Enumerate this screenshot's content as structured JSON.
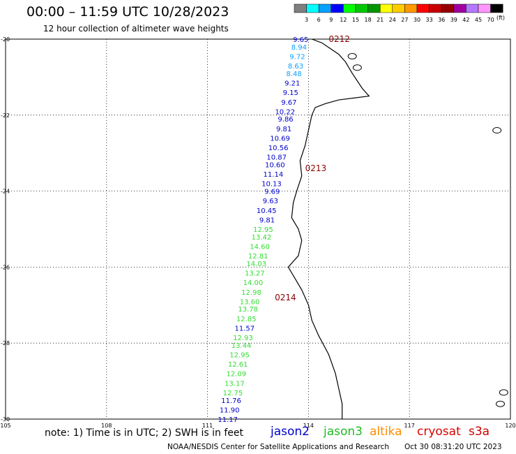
{
  "header": {
    "title": "00:00 – 11:59 UTC 10/28/2023",
    "subtitle": "12 hour collection of altimeter wave heights"
  },
  "color_scale": {
    "unit": "(ft)",
    "labels": [
      "3",
      "6",
      "9",
      "12",
      "15",
      "18",
      "21",
      "24",
      "27",
      "30",
      "33",
      "36",
      "39",
      "42",
      "45",
      "70"
    ],
    "colors": [
      "#7f7f7f",
      "#00ffff",
      "#0aa0ff",
      "#0000ff",
      "#00ff00",
      "#00c800",
      "#009600",
      "#ffff00",
      "#ffcc00",
      "#ff9900",
      "#ff0000",
      "#c80000",
      "#960000",
      "#a000a0",
      "#b478ff",
      "#ff96ff",
      "#000000"
    ]
  },
  "chart_data": {
    "type": "scatter",
    "title": "12 hour collection of altimeter wave heights",
    "xlim": [
      105,
      120
    ],
    "ylim": [
      -30,
      -20
    ],
    "x_ticks": [
      105,
      108,
      111,
      114,
      117,
      120
    ],
    "y_ticks": [
      -20,
      -22,
      -24,
      -26,
      -28,
      -30
    ],
    "x_tick_labels": [
      "105",
      "108",
      "111",
      "114",
      "117",
      "120"
    ],
    "y_tick_labels": [
      "-20",
      "-22",
      "-24",
      "-26",
      "-28",
      "-30"
    ],
    "grid": true,
    "coastline_color": "#000000",
    "pass_labels": [
      {
        "text": "0212",
        "lon": 114.6,
        "lat": -20.0
      },
      {
        "text": "0213",
        "lon": 113.9,
        "lat": -23.4
      },
      {
        "text": "0214",
        "lon": 113.0,
        "lat": -26.8
      }
    ],
    "series": [
      {
        "name": "jason2",
        "color": "#0000cc",
        "values": []
      },
      {
        "name": "jason3",
        "color": "#22bb22",
        "values": []
      },
      {
        "name": "altika",
        "color": "#ff8c00",
        "values": []
      },
      {
        "name": "cryosat",
        "color": "#dd0000",
        "values": []
      },
      {
        "name": "s3a",
        "color": "#cc0000",
        "values": []
      }
    ],
    "points": [
      {
        "text": "9.65",
        "lon": 114.0,
        "lat": -20.0,
        "color": "#0000cc"
      },
      {
        "text": "8.94",
        "lon": 113.95,
        "lat": -20.2,
        "color": "#0aa0ff"
      },
      {
        "text": "9.72",
        "lon": 113.9,
        "lat": -20.45,
        "color": "#0aa0ff"
      },
      {
        "text": "8.63",
        "lon": 113.85,
        "lat": -20.7,
        "color": "#0aa0ff"
      },
      {
        "text": "8.48",
        "lon": 113.8,
        "lat": -20.9,
        "color": "#0aa0ff"
      },
      {
        "text": "9.21",
        "lon": 113.75,
        "lat": -21.15,
        "color": "#0000cc"
      },
      {
        "text": "9.15",
        "lon": 113.7,
        "lat": -21.4,
        "color": "#0000cc"
      },
      {
        "text": "9.67",
        "lon": 113.65,
        "lat": -21.65,
        "color": "#0000cc"
      },
      {
        "text": "10.22",
        "lon": 113.6,
        "lat": -21.9,
        "color": "#0000cc"
      },
      {
        "text": "9.86",
        "lon": 113.55,
        "lat": -22.1,
        "color": "#0000cc"
      },
      {
        "text": "9.81",
        "lon": 113.5,
        "lat": -22.35,
        "color": "#0000cc"
      },
      {
        "text": "10.69",
        "lon": 113.45,
        "lat": -22.6,
        "color": "#0000cc"
      },
      {
        "text": "10.56",
        "lon": 113.4,
        "lat": -22.85,
        "color": "#0000cc"
      },
      {
        "text": "10.87",
        "lon": 113.35,
        "lat": -23.1,
        "color": "#0000cc"
      },
      {
        "text": "10.60",
        "lon": 113.3,
        "lat": -23.3,
        "color": "#0000cc"
      },
      {
        "text": "11.14",
        "lon": 113.25,
        "lat": -23.55,
        "color": "#0000cc"
      },
      {
        "text": "10.13",
        "lon": 113.2,
        "lat": -23.8,
        "color": "#0000cc"
      },
      {
        "text": "9.69",
        "lon": 113.15,
        "lat": -24.0,
        "color": "#0000cc"
      },
      {
        "text": "9.63",
        "lon": 113.1,
        "lat": -24.25,
        "color": "#0000cc"
      },
      {
        "text": "10.45",
        "lon": 113.05,
        "lat": -24.5,
        "color": "#0000cc"
      },
      {
        "text": "9.81",
        "lon": 113.0,
        "lat": -24.75,
        "color": "#0000cc"
      },
      {
        "text": "12.95",
        "lon": 112.95,
        "lat": -25.0,
        "color": "#33dd33"
      },
      {
        "text": "13.42",
        "lon": 112.9,
        "lat": -25.2,
        "color": "#33dd33"
      },
      {
        "text": "14.60",
        "lon": 112.85,
        "lat": -25.45,
        "color": "#33dd33"
      },
      {
        "text": "12.81",
        "lon": 112.8,
        "lat": -25.7,
        "color": "#33dd33"
      },
      {
        "text": "14.03",
        "lon": 112.75,
        "lat": -25.9,
        "color": "#33dd33"
      },
      {
        "text": "13.27",
        "lon": 112.7,
        "lat": -26.15,
        "color": "#33dd33"
      },
      {
        "text": "14.00",
        "lon": 112.65,
        "lat": -26.4,
        "color": "#33dd33"
      },
      {
        "text": "12.98",
        "lon": 112.6,
        "lat": -26.65,
        "color": "#33dd33"
      },
      {
        "text": "13.60",
        "lon": 112.55,
        "lat": -26.9,
        "color": "#33dd33"
      },
      {
        "text": "13.78",
        "lon": 112.5,
        "lat": -27.1,
        "color": "#33dd33"
      },
      {
        "text": "12.85",
        "lon": 112.45,
        "lat": -27.35,
        "color": "#33dd33"
      },
      {
        "text": "11.57",
        "lon": 112.4,
        "lat": -27.6,
        "color": "#0000cc"
      },
      {
        "text": "12.93",
        "lon": 112.35,
        "lat": -27.85,
        "color": "#33dd33"
      },
      {
        "text": "13.44",
        "lon": 112.3,
        "lat": -28.05,
        "color": "#33dd33"
      },
      {
        "text": "12.95",
        "lon": 112.25,
        "lat": -28.3,
        "color": "#33dd33"
      },
      {
        "text": "12.61",
        "lon": 112.2,
        "lat": -28.55,
        "color": "#33dd33"
      },
      {
        "text": "12.09",
        "lon": 112.15,
        "lat": -28.8,
        "color": "#33dd33"
      },
      {
        "text": "13.17",
        "lon": 112.1,
        "lat": -29.05,
        "color": "#33dd33"
      },
      {
        "text": "12.75",
        "lon": 112.05,
        "lat": -29.3,
        "color": "#33dd33"
      },
      {
        "text": "11.76",
        "lon": 112.0,
        "lat": -29.5,
        "color": "#0000cc"
      },
      {
        "text": "11.90",
        "lon": 111.95,
        "lat": -29.75,
        "color": "#0000cc"
      },
      {
        "text": "11.17",
        "lon": 111.9,
        "lat": -30.0,
        "color": "#0000cc"
      }
    ]
  },
  "footer": {
    "note": "note: 1) Time is in UTC; 2) SWH is in feet",
    "credit": "NOAA/NESDIS Center for Satellite Applications and Research",
    "timestamp": "Oct 30 08:31:20 UTC 2023",
    "legend": [
      {
        "label": "jason2",
        "color": "#0000cc"
      },
      {
        "label": "jason3",
        "color": "#22bb22"
      },
      {
        "label": "altika",
        "color": "#ff8c00"
      },
      {
        "label": "cryosat",
        "color": "#dd0000"
      },
      {
        "label": "s3a",
        "color": "#cc0000"
      }
    ]
  }
}
